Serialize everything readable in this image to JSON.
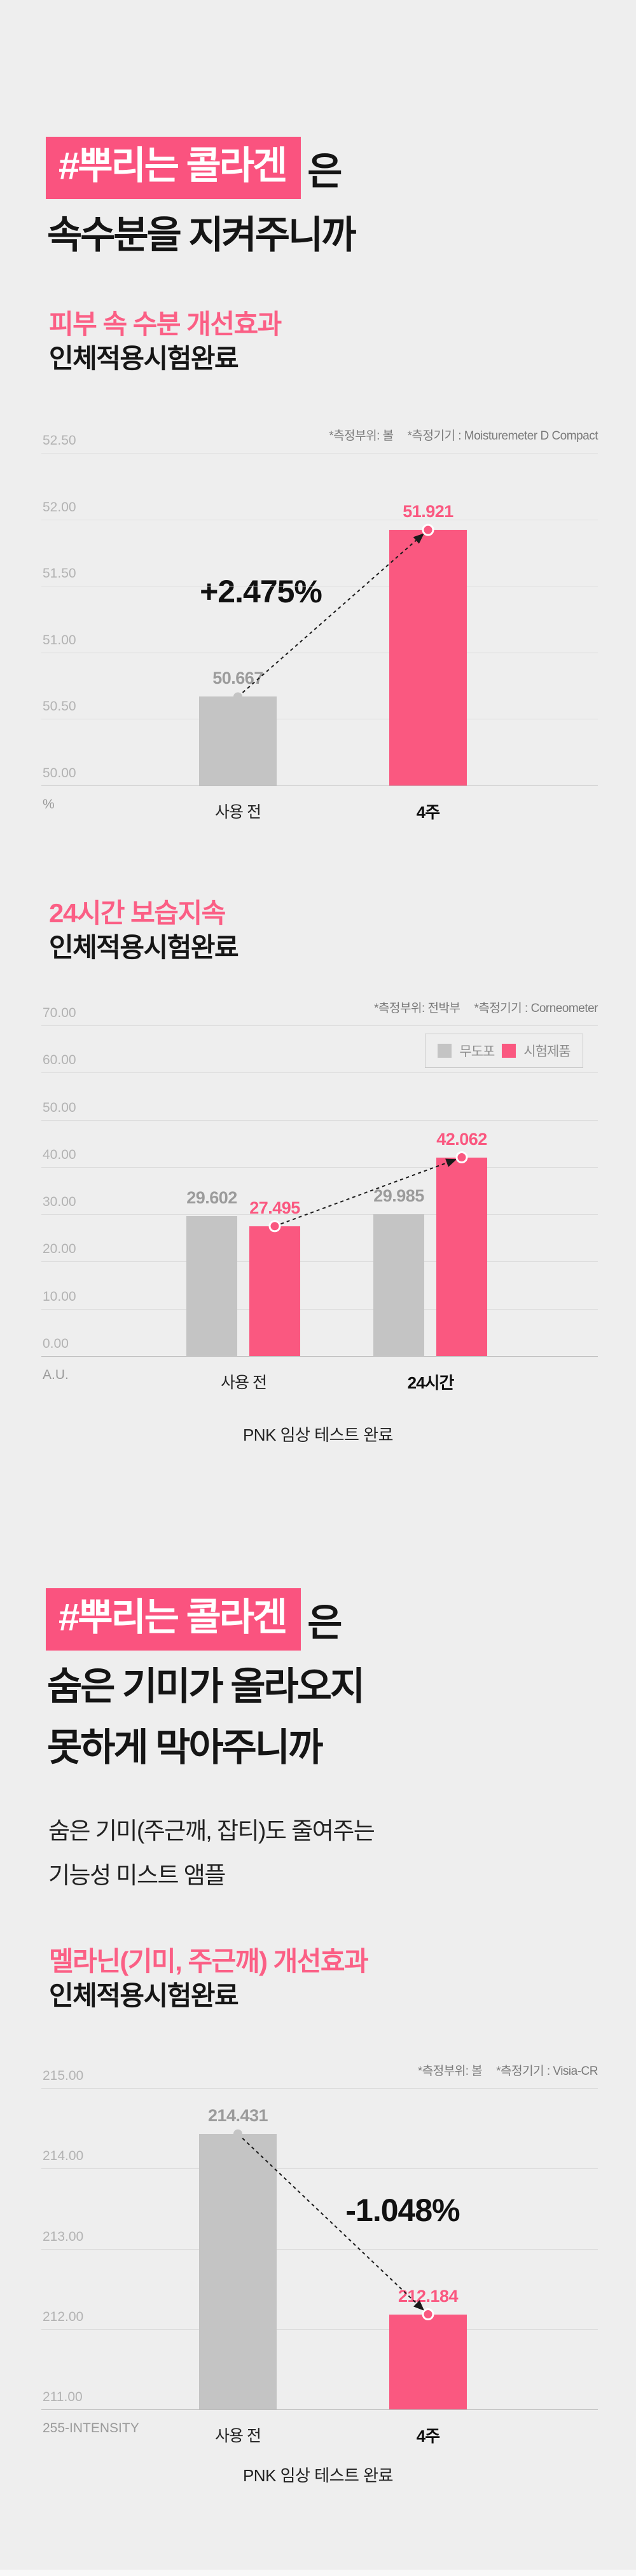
{
  "page": {
    "bg": "#EEEEEE",
    "accent_pink": "#FA5880",
    "highlight_pink": "#FA537F",
    "gray_bar": "#C4C4C4",
    "footer_note": "PNK 임상 테스트 완료"
  },
  "headline1": {
    "tag": "#뿌리는 콜라겐",
    "suffix": "은",
    "line2": "속수분을 지켜주니까"
  },
  "section_moisture": {
    "title": "피부 속 수분 개선효과",
    "subtitle": "인체적용시험완료"
  },
  "section_24h": {
    "title": "24시간 보습지속",
    "subtitle": "인체적용시험완료"
  },
  "headline2": {
    "tag": "#뿌리는 콜라겐",
    "suffix": "은",
    "line2": "숨은 기미가 올라오지",
    "line3": "못하게 막아주니까",
    "desc1": "숨은 기미(주근깨, 잡티)도 줄여주는",
    "desc2": "기능성 미스트 앰플"
  },
  "section_melanin": {
    "title": "멜라닌(기미, 주근깨) 개선효과",
    "subtitle": "인체적용시험완료"
  },
  "chart_data": [
    {
      "type": "bar",
      "title": "피부 속 수분 개선효과 인체적용시험완료",
      "categories": [
        "사용 전",
        "4주"
      ],
      "values": [
        50.667,
        51.921
      ],
      "bar_colors": [
        "#C4C4C4",
        "#FA5880"
      ],
      "value_label_colors": [
        "#9B9B9B",
        "#FA5880"
      ],
      "ylabel": "%",
      "ylim": [
        50.0,
        52.5
      ],
      "yticks": [
        50.0,
        50.5,
        51.0,
        51.5,
        52.0,
        52.5
      ],
      "grid": true,
      "legend_position": "none",
      "change_label": "+2.475%",
      "note_site": "*측정부위: 볼",
      "note_device": "*측정기기 : Moisturemeter D Compact"
    },
    {
      "type": "bar",
      "title": "24시간 보습지속 인체적용시험완료",
      "categories": [
        "사용 전",
        "24시간"
      ],
      "series": [
        {
          "name": "무도포",
          "color": "#C4C4C4",
          "label_color": "#9B9B9B",
          "values": [
            29.602,
            29.985
          ]
        },
        {
          "name": "시험제품",
          "color": "#FA5880",
          "label_color": "#FA5880",
          "values": [
            27.495,
            42.062
          ]
        }
      ],
      "ylabel": "A.U.",
      "ylim": [
        0,
        70
      ],
      "yticks": [
        0,
        10,
        20,
        30,
        40,
        50,
        60,
        70
      ],
      "grid": true,
      "legend_position": "top-right",
      "note_site": "*측정부위: 전박부",
      "note_device": "*측정기기 : Corneometer"
    },
    {
      "type": "bar",
      "title": "멜라닌(기미, 주근깨) 개선효과 인체적용시험완료",
      "categories": [
        "사용 전",
        "4주"
      ],
      "values": [
        214.431,
        212.184
      ],
      "bar_colors": [
        "#C4C4C4",
        "#FA5880"
      ],
      "value_label_colors": [
        "#9B9B9B",
        "#FA5880"
      ],
      "ylabel": "255-INTENSITY",
      "ylim": [
        211.0,
        215.0
      ],
      "yticks": [
        211.0,
        212.0,
        213.0,
        214.0,
        215.0
      ],
      "grid": true,
      "legend_position": "none",
      "change_label": "-1.048%",
      "note_site": "*측정부위: 볼",
      "note_device": "*측정기기 : Visia-CR"
    }
  ]
}
